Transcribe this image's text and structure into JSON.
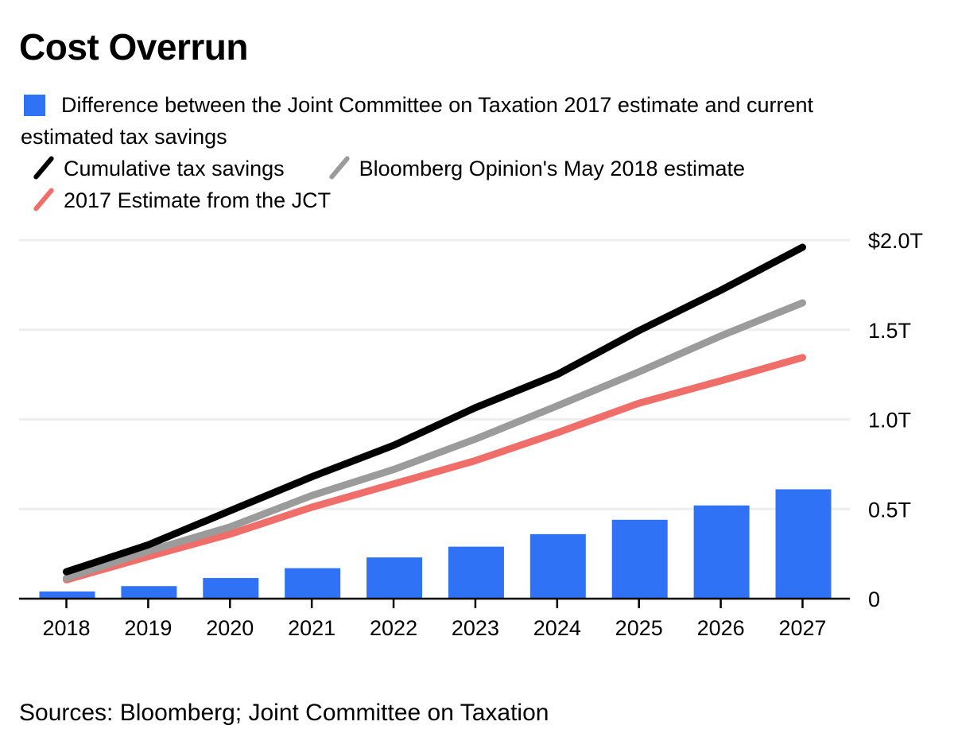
{
  "title": "Cost Overrun",
  "source": "Sources: Bloomberg; Joint Committee on Taxation",
  "colors": {
    "bar": "#2f72f5",
    "cumulative": "#000000",
    "bloomberg": "#9b9b9b",
    "jct": "#ef6e6a",
    "grid": "#eeeeee",
    "axis": "#000000"
  },
  "legend": {
    "bar_label_line1": "Difference between the Joint Committee on Taxation 2017 estimate and current",
    "bar_label_line2": "estimated tax savings",
    "cumulative_label": "Cumulative tax savings",
    "bloomberg_label": "Bloomberg Opinion's May 2018 estimate",
    "jct_label": "2017 Estimate from the JCT"
  },
  "chart_data": {
    "type": "bar+line",
    "title": "Cost Overrun",
    "xlabel": "",
    "ylabel": "",
    "categories": [
      "2018",
      "2019",
      "2020",
      "2021",
      "2022",
      "2023",
      "2024",
      "2025",
      "2026",
      "2027"
    ],
    "ylim": [
      0,
      2.0
    ],
    "y_ticks": [
      0,
      0.5,
      1.0,
      1.5,
      2.0
    ],
    "y_tick_labels": [
      "0",
      "0.5T",
      "1.0T",
      "1.5T",
      "$2.0T"
    ],
    "y_axis_side": "right",
    "grid": true,
    "legend_position": "top-left",
    "units": "trillions of US dollars",
    "series": [
      {
        "name": "Difference between the Joint Committee on Taxation 2017 estimate and current estimated tax savings",
        "type": "bar",
        "color": "#2f72f5",
        "values": [
          0.04,
          0.07,
          0.115,
          0.17,
          0.23,
          0.29,
          0.36,
          0.44,
          0.52,
          0.61
        ]
      },
      {
        "name": "Cumulative tax savings",
        "type": "line",
        "color": "#000000",
        "values": [
          0.15,
          0.3,
          0.49,
          0.68,
          0.855,
          1.065,
          1.25,
          1.495,
          1.72,
          1.96
        ]
      },
      {
        "name": "Bloomberg Opinion's May 2018 estimate",
        "type": "line",
        "color": "#9b9b9b",
        "values": [
          0.115,
          0.265,
          0.4,
          0.575,
          0.72,
          0.89,
          1.075,
          1.265,
          1.465,
          1.65
        ]
      },
      {
        "name": "2017 Estimate from the JCT",
        "type": "line",
        "color": "#ef6e6a",
        "values": [
          0.105,
          0.235,
          0.36,
          0.51,
          0.64,
          0.77,
          0.925,
          1.09,
          1.215,
          1.345
        ]
      }
    ],
    "source": "Sources: Bloomberg; Joint Committee on Taxation"
  }
}
